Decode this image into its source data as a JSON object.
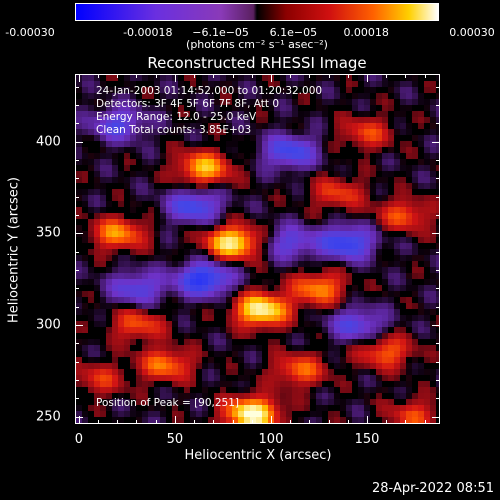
{
  "colorbar": {
    "ticks": [
      "-0.00030",
      "-0.00018",
      "−6.1e−05",
      "6.1e−05",
      "0.00018",
      "0.00030"
    ],
    "unit_label": "(photons cm⁻² s⁻¹ asec⁻²)",
    "range": [
      -0.0003,
      0.0003
    ]
  },
  "plot": {
    "info_lines": [
      "24-Jan-2003 01:14:52.000 to 01:20:32.000",
      "Detectors: 3F 4F 5F 6F 7F 8F, Att 0",
      "Energy Range: 12.0 - 25.0 keV",
      "Clean      Total counts: 3.85E+03"
    ],
    "peak_label": "Position of Peak = [90,251]"
  },
  "footer": {
    "date": "28-Apr-2022 08:51"
  },
  "chart_data": {
    "type": "heatmap",
    "title": "Reconstructed RHESSI Image",
    "xlabel": "Heliocentric X (arcsec)",
    "ylabel": "Heliocentric Y (arcsec)",
    "xlim": [
      -2,
      188
    ],
    "ylim": [
      246,
      437
    ],
    "xticks": [
      "0",
      "50",
      "100",
      "150"
    ],
    "yticks": [
      "250",
      "300",
      "350",
      "400"
    ],
    "xtick_values": [
      0,
      50,
      100,
      150
    ],
    "ytick_values": [
      250,
      300,
      350,
      400
    ],
    "peak": {
      "x": 90,
      "y": 251
    },
    "bright_sources": [
      {
        "x": 90,
        "y": 251,
        "intensity": 1.0
      },
      {
        "x": 95,
        "y": 308,
        "intensity": 0.95
      },
      {
        "x": 80,
        "y": 345,
        "intensity": 0.9
      },
      {
        "x": 65,
        "y": 386,
        "intensity": 0.7
      },
      {
        "x": 125,
        "y": 320,
        "intensity": 0.6
      },
      {
        "x": 20,
        "y": 350,
        "intensity": 0.6
      },
      {
        "x": 45,
        "y": 278,
        "intensity": 0.55
      },
      {
        "x": 160,
        "y": 285,
        "intensity": 0.5
      },
      {
        "x": 170,
        "y": 360,
        "intensity": 0.45
      },
      {
        "x": 115,
        "y": 275,
        "intensity": 0.5
      },
      {
        "x": 150,
        "y": 405,
        "intensity": 0.4
      },
      {
        "x": 30,
        "y": 300,
        "intensity": 0.45
      },
      {
        "x": 175,
        "y": 250,
        "intensity": 0.4
      },
      {
        "x": 10,
        "y": 270,
        "intensity": 0.35
      },
      {
        "x": 135,
        "y": 372,
        "intensity": 0.4
      }
    ],
    "dark_sources": [
      {
        "x": 65,
        "y": 325,
        "intensity": -0.8
      },
      {
        "x": 60,
        "y": 365,
        "intensity": -0.6
      },
      {
        "x": 140,
        "y": 345,
        "intensity": -0.7
      },
      {
        "x": 110,
        "y": 395,
        "intensity": -0.6
      },
      {
        "x": 30,
        "y": 320,
        "intensity": -0.5
      },
      {
        "x": 145,
        "y": 300,
        "intensity": -0.5
      },
      {
        "x": 20,
        "y": 410,
        "intensity": -0.5
      },
      {
        "x": 110,
        "y": 345,
        "intensity": -0.45
      }
    ]
  }
}
